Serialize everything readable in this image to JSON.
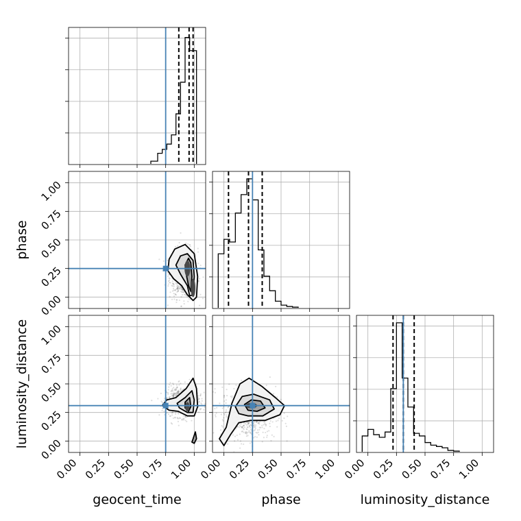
{
  "chart_data": {
    "type": "corner",
    "parameters": [
      "geocent_time",
      "phase",
      "luminosity_distance"
    ],
    "axis_labels": {
      "x": [
        "geocent_time",
        "phase",
        "luminosity_distance"
      ],
      "y": [
        "",
        "phase",
        "luminosity_distance"
      ]
    },
    "tick_values": [
      0.0,
      0.25,
      0.5,
      0.75,
      1.0
    ],
    "tick_labels": [
      "0.00",
      "0.25",
      "0.50",
      "0.75",
      "1.00"
    ],
    "axis_range": [
      -0.1,
      1.1
    ],
    "truths": {
      "geocent_time": 0.75,
      "phase": 0.25,
      "luminosity_distance": 0.31
    },
    "truth_color": "#4682b4",
    "grid": true,
    "histograms": [
      {
        "parameter": "geocent_time",
        "bin_edges": [
          0.62,
          0.68,
          0.72,
          0.76,
          0.8,
          0.84,
          0.88,
          0.92,
          0.96,
          1.0,
          1.02
        ],
        "counts": [
          0.02,
          0.08,
          0.11,
          0.15,
          0.22,
          0.38,
          0.62,
          0.96,
          0.86,
          0.86
        ],
        "quantiles": [
          0.865,
          0.955,
          0.99
        ]
      },
      {
        "parameter": "phase",
        "bin_edges": [
          -0.05,
          0.0,
          0.05,
          0.1,
          0.15,
          0.2,
          0.25,
          0.3,
          0.35,
          0.4,
          0.45,
          0.5,
          0.55,
          0.6,
          0.65
        ],
        "counts": [
          0.41,
          0.52,
          0.5,
          0.72,
          0.86,
          0.98,
          0.82,
          0.44,
          0.24,
          0.13,
          0.05,
          0.02,
          0.01,
          0.005
        ],
        "quantiles": [
          0.04,
          0.215,
          0.335
        ]
      },
      {
        "parameter": "luminosity_distance",
        "bin_edges": [
          -0.05,
          0.0,
          0.05,
          0.1,
          0.15,
          0.2,
          0.25,
          0.3,
          0.35,
          0.4,
          0.45,
          0.5,
          0.55,
          0.6,
          0.65,
          0.7,
          0.75,
          0.8
        ],
        "counts": [
          0.12,
          0.17,
          0.13,
          0.11,
          0.15,
          0.48,
          0.98,
          0.56,
          0.34,
          0.14,
          0.12,
          0.07,
          0.05,
          0.04,
          0.03,
          0.01,
          0.005
        ],
        "quantiles": [
          0.22,
          0.31,
          0.405
        ]
      }
    ],
    "posteriors_2d": [
      {
        "x": "geocent_time",
        "y": "phase",
        "contours": [
          [
            [
              0.77,
              0.23
            ],
            [
              0.78,
              0.33
            ],
            [
              0.83,
              0.42
            ],
            [
              0.92,
              0.46
            ],
            [
              1.0,
              0.38
            ],
            [
              1.03,
              0.18
            ],
            [
              1.02,
              0.0
            ],
            [
              0.99,
              -0.03
            ],
            [
              0.94,
              0.02
            ],
            [
              0.89,
              0.1
            ],
            [
              0.82,
              0.16
            ]
          ],
          [
            [
              0.84,
              0.28
            ],
            [
              0.88,
              0.36
            ],
            [
              0.94,
              0.38
            ],
            [
              0.99,
              0.32
            ],
            [
              1.0,
              0.18
            ],
            [
              0.99,
              0.02
            ],
            [
              0.96,
              0.01
            ],
            [
              0.94,
              0.1
            ],
            [
              0.88,
              0.2
            ]
          ],
          [
            [
              0.92,
              0.28
            ],
            [
              0.95,
              0.34
            ],
            [
              0.97,
              0.3
            ],
            [
              0.98,
              0.18
            ],
            [
              0.97,
              0.05
            ],
            [
              0.95,
              0.1
            ],
            [
              0.93,
              0.2
            ]
          ]
        ],
        "density_cores": [
          [
            0.94,
            0.25,
            0.025,
            0.07
          ],
          [
            0.99,
            0.08,
            0.02,
            0.08
          ]
        ]
      },
      {
        "x": "geocent_time",
        "y": "luminosity_distance",
        "contours": [
          [
            [
              0.72,
              0.31
            ],
            [
              0.76,
              0.36
            ],
            [
              0.84,
              0.38
            ],
            [
              0.93,
              0.46
            ],
            [
              0.99,
              0.55
            ],
            [
              1.02,
              0.46
            ],
            [
              1.03,
              0.3
            ],
            [
              1.0,
              0.22
            ],
            [
              0.94,
              0.22
            ],
            [
              0.86,
              0.26
            ],
            [
              0.78,
              0.27
            ]
          ],
          [
            [
              0.85,
              0.33
            ],
            [
              0.92,
              0.38
            ],
            [
              0.98,
              0.44
            ],
            [
              1.0,
              0.36
            ],
            [
              0.99,
              0.25
            ],
            [
              0.94,
              0.25
            ],
            [
              0.87,
              0.29
            ]
          ],
          [
            [
              0.92,
              0.34
            ],
            [
              0.96,
              0.38
            ],
            [
              0.97,
              0.3
            ],
            [
              0.95,
              0.26
            ],
            [
              0.92,
              0.29
            ]
          ],
          [
            [
              0.99,
              0.02
            ],
            [
              1.01,
              0.08
            ],
            [
              1.02,
              0.02
            ],
            [
              1.0,
              -0.02
            ],
            [
              0.98,
              -0.01
            ]
          ]
        ],
        "density_cores": [
          [
            0.94,
            0.3,
            0.02,
            0.04
          ]
        ]
      },
      {
        "x": "phase",
        "y": "luminosity_distance",
        "contours": [
          [
            [
              -0.04,
              0.02
            ],
            [
              0.02,
              0.12
            ],
            [
              0.07,
              0.33
            ],
            [
              0.14,
              0.5
            ],
            [
              0.22,
              0.55
            ],
            [
              0.33,
              0.48
            ],
            [
              0.45,
              0.38
            ],
            [
              0.53,
              0.31
            ],
            [
              0.49,
              0.23
            ],
            [
              0.36,
              0.18
            ],
            [
              0.23,
              0.18
            ],
            [
              0.13,
              0.16
            ],
            [
              0.06,
              0.06
            ],
            [
              0.0,
              -0.04
            ]
          ],
          [
            [
              0.1,
              0.3
            ],
            [
              0.16,
              0.39
            ],
            [
              0.26,
              0.41
            ],
            [
              0.4,
              0.36
            ],
            [
              0.44,
              0.28
            ],
            [
              0.34,
              0.22
            ],
            [
              0.21,
              0.22
            ],
            [
              0.13,
              0.24
            ]
          ],
          [
            [
              0.18,
              0.32
            ],
            [
              0.24,
              0.36
            ],
            [
              0.32,
              0.35
            ],
            [
              0.36,
              0.29
            ],
            [
              0.29,
              0.26
            ],
            [
              0.21,
              0.27
            ]
          ]
        ],
        "density_cores": [
          [
            0.24,
            0.31,
            0.05,
            0.025
          ]
        ]
      }
    ]
  }
}
